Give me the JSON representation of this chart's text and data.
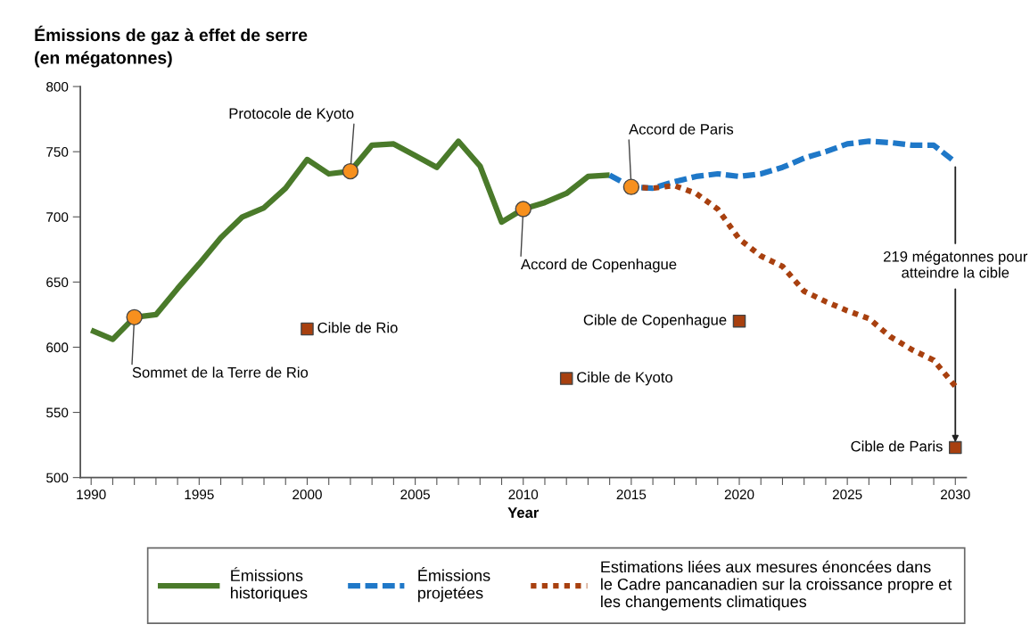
{
  "chart_data": {
    "type": "line",
    "ylabel": "Émissions de gaz à effet de serre\n(en mégatonnes)",
    "xlabel": "Year",
    "xlim": [
      1989.5,
      2030.5
    ],
    "ylim": [
      500,
      800
    ],
    "xticks": [
      1990,
      {
        "value": 1991,
        "label": null
      },
      {
        "value": 1992,
        "label": null
      },
      {
        "value": 1993,
        "label": null
      },
      {
        "value": 1994,
        "label": null
      },
      1995,
      {
        "value": 1996,
        "label": null
      },
      {
        "value": 1997,
        "label": null
      },
      {
        "value": 1998,
        "label": null
      },
      {
        "value": 1999,
        "label": null
      },
      2000,
      {
        "value": 2001,
        "label": null
      },
      {
        "value": 2002,
        "label": null
      },
      {
        "value": 2003,
        "label": null
      },
      {
        "value": 2004,
        "label": null
      },
      2005,
      {
        "value": 2006,
        "label": null
      },
      {
        "value": 2007,
        "label": null
      },
      {
        "value": 2008,
        "label": null
      },
      {
        "value": 2009,
        "label": null
      },
      2010,
      {
        "value": 2011,
        "label": null
      },
      {
        "value": 2012,
        "label": null
      },
      {
        "value": 2013,
        "label": null
      },
      {
        "value": 2014,
        "label": null
      },
      2015,
      {
        "value": 2016,
        "label": null
      },
      {
        "value": 2017,
        "label": null
      },
      {
        "value": 2018,
        "label": null
      },
      {
        "value": 2019,
        "label": null
      },
      2020,
      {
        "value": 2021,
        "label": null
      },
      {
        "value": 2022,
        "label": null
      },
      {
        "value": 2023,
        "label": null
      },
      {
        "value": 2024,
        "label": null
      },
      2025,
      {
        "value": 2026,
        "label": null
      },
      {
        "value": 2027,
        "label": null
      },
      {
        "value": 2028,
        "label": null
      },
      {
        "value": 2029,
        "label": null
      },
      2030
    ],
    "yticks": [
      500,
      550,
      600,
      650,
      700,
      750,
      800
    ],
    "grid": false,
    "legend": "bottom",
    "series": [
      {
        "name": "Émissions\nhistoriques",
        "color": "#4a7a2a",
        "line_style": "solid",
        "marker": "none",
        "x": [
          1990,
          1991,
          1992,
          1993,
          1994,
          1995,
          1996,
          1997,
          1998,
          1999,
          2000,
          2001,
          2002,
          2003,
          2004,
          2005,
          2006,
          2007,
          2008,
          2009,
          2010,
          2011,
          2012,
          2013,
          2014
        ],
        "values": [
          613,
          606,
          623,
          625,
          645,
          664,
          684,
          700,
          707,
          722,
          744,
          733,
          735,
          755,
          756,
          747,
          738,
          758,
          739,
          696,
          706,
          711,
          718,
          731,
          732
        ]
      },
      {
        "name": "Émissions\nprojetées",
        "color": "#1f78c8",
        "line_style": "dashed",
        "marker": "none",
        "x": [
          2014,
          2015,
          2016,
          2017,
          2018,
          2019,
          2020,
          2021,
          2022,
          2023,
          2024,
          2025,
          2026,
          2027,
          2028,
          2029,
          2030
        ],
        "values": [
          732,
          723,
          722,
          727,
          731,
          733,
          731,
          733,
          738,
          745,
          750,
          756,
          758,
          757,
          755,
          755,
          742
        ]
      },
      {
        "name": "Estimations liées aux mesures énoncées dans\nle Cadre pancanadien sur la croissance propre et\nles changements climatiques",
        "color": "#a8400f",
        "line_style": "dotted",
        "marker": "none",
        "x": [
          2015,
          2016,
          2017,
          2018,
          2019,
          2020,
          2021,
          2022,
          2023,
          2024,
          2025,
          2026,
          2027,
          2028,
          2029,
          2030
        ],
        "values": [
          723,
          722,
          724,
          718,
          706,
          683,
          670,
          662,
          643,
          635,
          628,
          622,
          608,
          598,
          590,
          570
        ]
      },
      {
        "type": "scatter",
        "color": "#f7901e",
        "marker": "circle",
        "x": [
          1992,
          2002,
          2010,
          2015
        ],
        "values": [
          623,
          735,
          706,
          723
        ]
      },
      {
        "type": "scatter",
        "color": "#a8400f",
        "marker": "square",
        "x": [
          2000,
          2012,
          2020,
          2030
        ],
        "values": [
          614,
          576,
          620,
          523
        ]
      }
    ],
    "annotations": [
      {
        "text": "Sommet de la Terre de Rio",
        "x": 1992,
        "y": 623
      },
      {
        "text": "Protocole de Kyoto",
        "x": 2002,
        "y": 735
      },
      {
        "text": "Accord de Copenhague",
        "x": 2010,
        "y": 706
      },
      {
        "text": "Accord de Paris",
        "x": 2015,
        "y": 723
      },
      {
        "text": "Cible de Rio",
        "x": 2000,
        "y": 614
      },
      {
        "text": "Cible de Kyoto",
        "x": 2012,
        "y": 576
      },
      {
        "text": "Cible de Copenhague",
        "x": 2020,
        "y": 620
      },
      {
        "text": "Cible de Paris",
        "x": 2030,
        "y": 523
      },
      {
        "text": "219 mégatonnes pour\natteindre la cible",
        "x": 2030,
        "y": 742
      }
    ]
  }
}
